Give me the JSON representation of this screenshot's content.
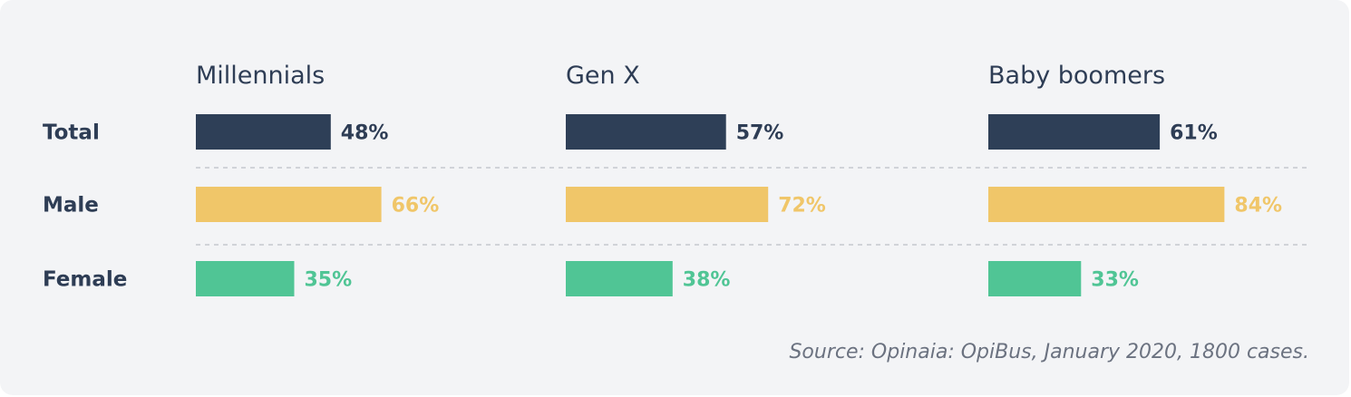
{
  "chart_data": {
    "type": "bar",
    "orientation": "horizontal",
    "groups": [
      "Millennials",
      "Gen X",
      "Baby boomers"
    ],
    "categories": [
      "Total",
      "Male",
      "Female"
    ],
    "series": [
      {
        "group": "Millennials",
        "values": [
          48,
          66,
          35
        ],
        "labels": [
          "48%",
          "66%",
          "35%"
        ]
      },
      {
        "group": "Gen X",
        "values": [
          57,
          72,
          38
        ],
        "labels": [
          "57%",
          "72%",
          "38%"
        ]
      },
      {
        "group": "Baby boomers",
        "values": [
          61,
          84,
          33
        ],
        "labels": [
          "61%",
          "84%",
          "33%"
        ]
      }
    ],
    "unit": "%",
    "xlim": [
      0,
      100
    ],
    "colors": {
      "Total": "#2e3f57",
      "Male": "#f0c669",
      "Female": "#50c595"
    },
    "label_colors": {
      "Total": "#2e3d55",
      "Male": "#f0c669",
      "Female": "#50c595"
    },
    "separator_color": "#c4c8ce",
    "source": "Source: Opinaia: OpiBus, January 2020, 1800 cases."
  }
}
